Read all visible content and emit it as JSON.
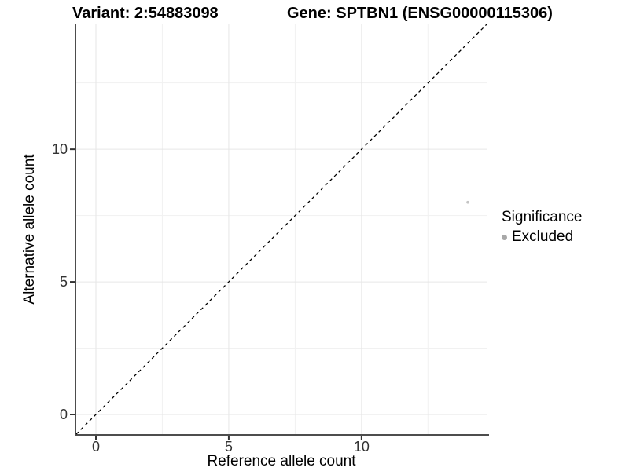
{
  "chart_data": {
    "type": "scatter",
    "title_left": "Variant: 2:54883098",
    "title_right": "Gene: SPTBN1 (ENSG00000115306)",
    "xlabel": "Reference allele count",
    "ylabel": "Alternative allele count",
    "xlim": [
      -0.74,
      14.74
    ],
    "ylim": [
      -0.74,
      14.74
    ],
    "x_ticks": [
      0,
      5,
      10
    ],
    "y_ticks": [
      0,
      5,
      10
    ],
    "x_minor_ticks": [
      2.5,
      7.5,
      12.5
    ],
    "y_minor_ticks": [
      2.5,
      7.5,
      12.5
    ],
    "grid": "major+minor, very light gray on white",
    "reference_line": {
      "type": "identity",
      "slope": 1,
      "intercept": 0,
      "style": "dashed",
      "color": "#000000"
    },
    "series": [
      {
        "name": "Excluded",
        "color": "#c4c4c4",
        "points": [
          [
            14,
            8
          ]
        ]
      }
    ],
    "legend": {
      "title": "Significance",
      "position": "right",
      "items": [
        {
          "label": "Excluded",
          "marker_color": "#a8a8a8"
        }
      ]
    },
    "colors": {
      "background": "#ffffff",
      "grid_major": "#e6e6e6",
      "grid_minor": "#f1f1f1",
      "axis_line": "#4d4d4d",
      "tick_mark": "#333333",
      "tick_text": "#333333",
      "title_text": "#000000"
    }
  }
}
